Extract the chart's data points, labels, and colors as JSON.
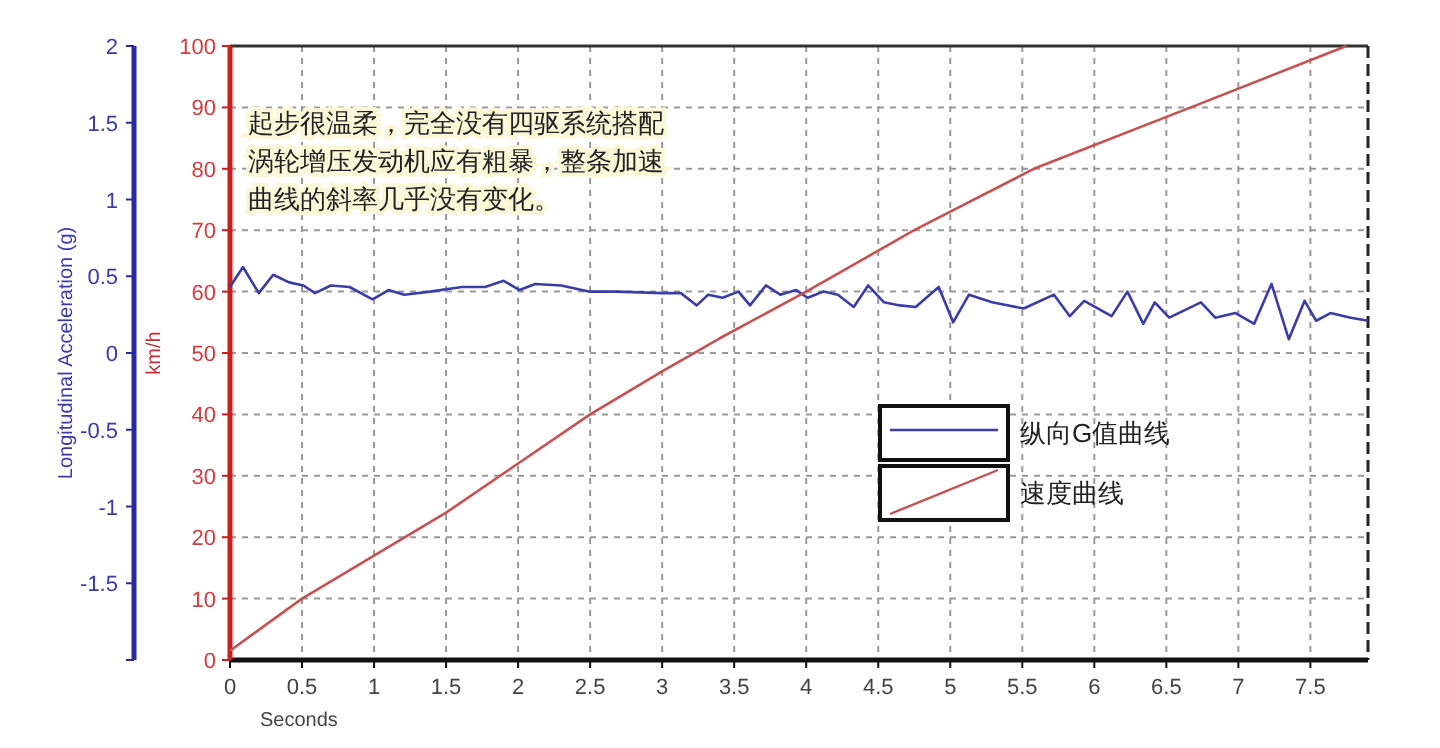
{
  "chart_data": {
    "type": "line",
    "xlabel": "Seconds",
    "ylabel": "Longitudinal Acceleration (g)",
    "y2label": "km/h",
    "xlim": [
      0,
      7.9
    ],
    "xticks": [
      0,
      0.5,
      1,
      1.5,
      2,
      2.5,
      3,
      3.5,
      4,
      4.5,
      5,
      5.5,
      6,
      6.5,
      7,
      7.5
    ],
    "ylim": [
      -2,
      2
    ],
    "yticks": [
      {
        "value": -2,
        "label": null
      },
      -1.5,
      -1,
      -0.5,
      0,
      0.5,
      1,
      1.5,
      2
    ],
    "y2lim": [
      0,
      100
    ],
    "y2ticks": [
      0,
      10,
      20,
      30,
      40,
      50,
      60,
      70,
      80,
      90,
      100
    ],
    "grid": true,
    "legend": "right",
    "annotations": [
      "起步很温柔，完全没有四驱系统搭配涡轮增压发动机应有粗暴，整条加速曲线的斜率几乎没有变化。"
    ],
    "series": [
      {
        "name": "纵向G值曲线",
        "color": "#3c3ca8",
        "x": [
          0,
          0.09,
          0.2,
          0.3,
          0.41,
          0.51,
          0.59,
          0.7,
          0.83,
          0.99,
          1.1,
          1.21,
          1.39,
          1.61,
          1.77,
          1.9,
          2.01,
          2.12,
          2.3,
          2.49,
          2.68,
          3.0,
          3.13,
          3.24,
          3.32,
          3.42,
          3.53,
          3.61,
          3.72,
          3.82,
          3.93,
          4.01,
          4.12,
          4.22,
          4.33,
          4.43,
          4.54,
          4.65,
          4.76,
          4.92,
          5.02,
          5.13,
          5.29,
          5.51,
          5.72,
          5.83,
          5.93,
          6.12,
          6.23,
          6.34,
          6.42,
          6.52,
          6.74,
          6.84,
          6.98,
          7.11,
          7.23,
          7.35,
          7.46,
          7.54,
          7.64,
          7.78,
          7.9
        ],
        "values": [
          0.43,
          0.56,
          0.39,
          0.51,
          0.46,
          0.44,
          0.39,
          0.44,
          0.43,
          0.35,
          0.41,
          0.38,
          0.4,
          0.43,
          0.43,
          0.47,
          0.41,
          0.45,
          0.44,
          0.4,
          0.4,
          0.39,
          0.39,
          0.31,
          0.38,
          0.36,
          0.4,
          0.31,
          0.44,
          0.38,
          0.41,
          0.36,
          0.4,
          0.38,
          0.3,
          0.44,
          0.33,
          0.31,
          0.3,
          0.43,
          0.2,
          0.38,
          0.33,
          0.29,
          0.38,
          0.24,
          0.34,
          0.24,
          0.4,
          0.19,
          0.33,
          0.23,
          0.33,
          0.23,
          0.26,
          0.19,
          0.45,
          0.09,
          0.34,
          0.21,
          0.26,
          0.23,
          0.21
        ]
      },
      {
        "name": "速度曲线",
        "color": "#c85050",
        "axis": "y2",
        "x": [
          0,
          0.5,
          1,
          1.5,
          2,
          2.5,
          3,
          3.4,
          4,
          4.75,
          5.58,
          6.67,
          7.75
        ],
        "values": [
          1.5,
          10,
          17,
          24,
          32,
          40,
          47,
          52.4,
          60,
          70,
          80,
          90,
          100
        ]
      }
    ]
  }
}
